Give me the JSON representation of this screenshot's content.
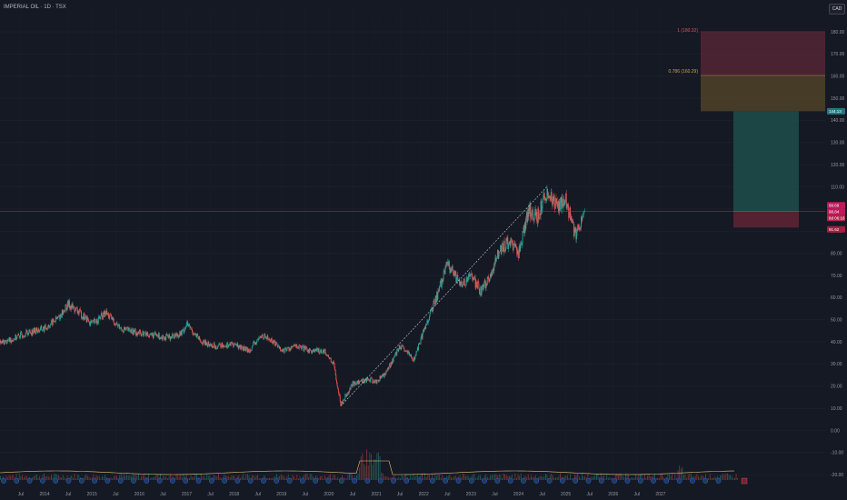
{
  "header": {
    "symbol_title": "IMPERIAL OIL · 1D · TSX"
  },
  "currency_label": "CAD",
  "colors": {
    "background": "#151923",
    "up": "#26a69a",
    "down": "#ef5350",
    "target_zone": "#6e2a3c",
    "fib_zone": "#5a4a2a",
    "profit_zone": "#1d4a4a",
    "stop_zone": "#5b2432",
    "price_line": "#b03a54"
  },
  "price_tags": {
    "target": "144.13",
    "current": "99.68",
    "current_sub": "98.84",
    "countdown": "8d 06:16",
    "stop": "91.62"
  },
  "annotations": {
    "upper": "1 (180.32)",
    "fib": "0.786 (160.29)"
  },
  "volume_markers": [
    "D",
    "E",
    "S"
  ],
  "chart_data": {
    "type": "candlestick",
    "title": "IMPERIAL OIL · 1D · TSX",
    "xlabel": "",
    "ylabel": "",
    "ylim": [
      -25,
      195
    ],
    "x_tick_labels": [
      "Jul",
      "2014",
      "Jul",
      "2015",
      "Jul",
      "2016",
      "Jul",
      "2017",
      "Jul",
      "2018",
      "Jul",
      "2019",
      "Jul",
      "2020",
      "Jul",
      "2021",
      "Jul",
      "2022",
      "Jul",
      "2023",
      "Jul",
      "2024",
      "Jul",
      "2025",
      "Jul",
      "2026",
      "Jul",
      "2027"
    ],
    "y_tick_labels": [
      "180.00",
      "170.00",
      "160.00",
      "150.00",
      "140.00",
      "130.00",
      "120.00",
      "110.00",
      "100.00",
      "90.00",
      "80.00",
      "70.00",
      "60.00",
      "50.00",
      "40.00",
      "30.00",
      "20.00",
      "10.00",
      "0.00",
      "-10.00",
      "-20.00"
    ],
    "y_ticks": [
      180,
      170,
      160,
      150,
      140,
      130,
      120,
      110,
      100,
      90,
      80,
      70,
      60,
      50,
      40,
      30,
      20,
      10,
      0,
      -10,
      -20
    ],
    "price_series": [
      {
        "date": "2013.0",
        "close": 39
      },
      {
        "date": "2013.3",
        "close": 41
      },
      {
        "date": "2013.6",
        "close": 44
      },
      {
        "date": "2014.0",
        "close": 46
      },
      {
        "date": "2014.3",
        "close": 51
      },
      {
        "date": "2014.5",
        "close": 57
      },
      {
        "date": "2014.8",
        "close": 52
      },
      {
        "date": "2015.0",
        "close": 48
      },
      {
        "date": "2015.3",
        "close": 53
      },
      {
        "date": "2015.6",
        "close": 46
      },
      {
        "date": "2016.0",
        "close": 44
      },
      {
        "date": "2016.3",
        "close": 43
      },
      {
        "date": "2016.6",
        "close": 42
      },
      {
        "date": "2016.9",
        "close": 44
      },
      {
        "date": "2017.0",
        "close": 48
      },
      {
        "date": "2017.3",
        "close": 40
      },
      {
        "date": "2017.6",
        "close": 38
      },
      {
        "date": "2018.0",
        "close": 39
      },
      {
        "date": "2018.3",
        "close": 36
      },
      {
        "date": "2018.6",
        "close": 43
      },
      {
        "date": "2018.9",
        "close": 39
      },
      {
        "date": "2019.0",
        "close": 36
      },
      {
        "date": "2019.3",
        "close": 38
      },
      {
        "date": "2019.6",
        "close": 36
      },
      {
        "date": "2019.9",
        "close": 36
      },
      {
        "date": "2020.1",
        "close": 30
      },
      {
        "date": "2020.25",
        "close": 12
      },
      {
        "date": "2020.5",
        "close": 21
      },
      {
        "date": "2020.8",
        "close": 23
      },
      {
        "date": "2021.0",
        "close": 22
      },
      {
        "date": "2021.2",
        "close": 26
      },
      {
        "date": "2021.5",
        "close": 38
      },
      {
        "date": "2021.8",
        "close": 32
      },
      {
        "date": "2022.0",
        "close": 45
      },
      {
        "date": "2022.3",
        "close": 62
      },
      {
        "date": "2022.5",
        "close": 75
      },
      {
        "date": "2022.8",
        "close": 65
      },
      {
        "date": "2023.0",
        "close": 70
      },
      {
        "date": "2023.2",
        "close": 63
      },
      {
        "date": "2023.4",
        "close": 69
      },
      {
        "date": "2023.6",
        "close": 82
      },
      {
        "date": "2023.8",
        "close": 85
      },
      {
        "date": "2024.0",
        "close": 80
      },
      {
        "date": "2024.2",
        "close": 99
      },
      {
        "date": "2024.4",
        "close": 97
      },
      {
        "date": "2024.6",
        "close": 108
      },
      {
        "date": "2024.8",
        "close": 101
      },
      {
        "date": "2025.0",
        "close": 104
      },
      {
        "date": "2025.2",
        "close": 88
      },
      {
        "date": "2025.4",
        "close": 98.84
      }
    ],
    "trendline": {
      "from": {
        "date": "2020.25",
        "price": 11
      },
      "to": {
        "date": "2024.6",
        "price": 110
      }
    },
    "position": {
      "entry": 98.84,
      "target": 144.13,
      "stop": 91.62,
      "fib_0786": 160.29,
      "fib_1": 180.32
    }
  }
}
